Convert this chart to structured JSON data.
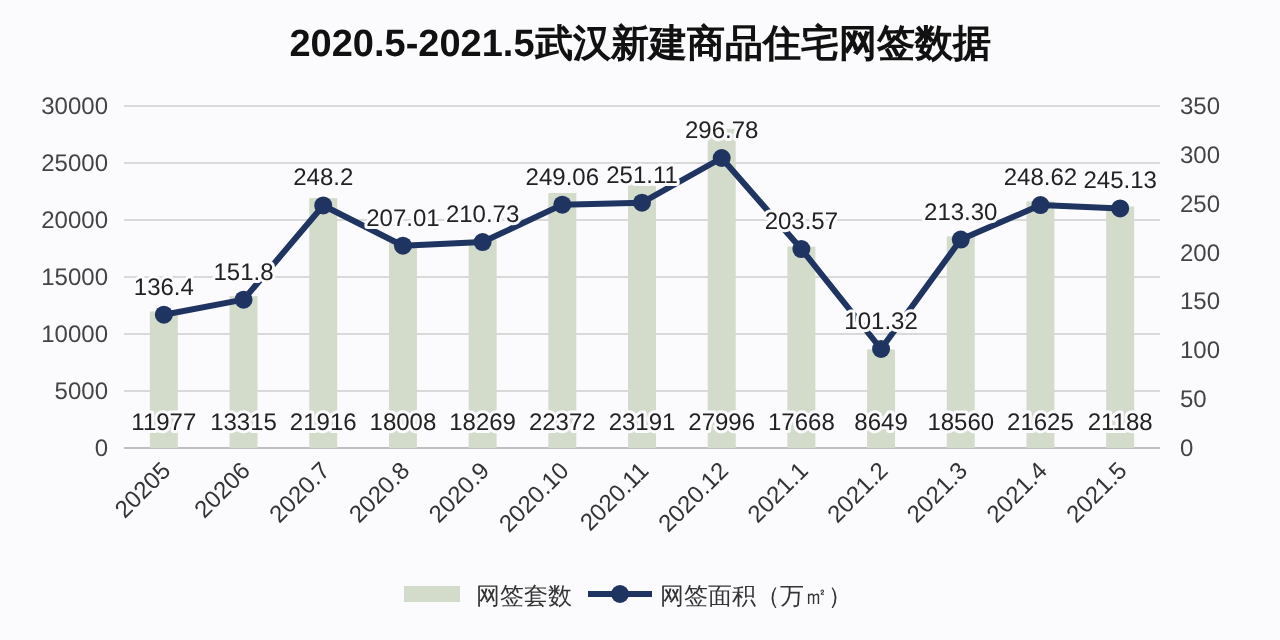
{
  "chart_data": {
    "type": "bar",
    "title": "2020.5-2021.5武汉新建商品住宅网签数据",
    "categories": [
      "20205",
      "20206",
      "2020.7",
      "2020.8",
      "2020.9",
      "2020.10",
      "2020.11",
      "2020.12",
      "2021.1",
      "2021.2",
      "2021.3",
      "2021.4",
      "2021.5"
    ],
    "series": [
      {
        "name": "网签套数",
        "color": "#d3dccb",
        "values": [
          11977,
          13315,
          21916,
          18008,
          18269,
          22372,
          23191,
          27996,
          17668,
          8649,
          18560,
          21625,
          21188
        ],
        "value_labels": [
          "11977",
          "13315",
          "21916",
          "18008",
          "18269",
          "22372",
          "23191",
          "27996",
          "17668",
          "8649",
          "18560",
          "21625",
          "21188"
        ]
      },
      {
        "name": "网签面积（万㎡）",
        "type": "line",
        "axis": "y2",
        "color": "#1f3461",
        "marker": "circle",
        "values": [
          136.4,
          151.8,
          248.2,
          207.01,
          210.73,
          249.06,
          251.11,
          296.78,
          203.57,
          101.32,
          213.3,
          248.62,
          245.13
        ],
        "value_labels": [
          "136.4",
          "151.8",
          "248.2",
          "207.01",
          "210.73",
          "249.06",
          "251.11",
          "296.78",
          "203.57",
          "101.32",
          "213.30",
          "248.62",
          "245.13"
        ]
      }
    ],
    "ylim": [
      0,
      30000
    ],
    "yticks": [
      0,
      5000,
      10000,
      15000,
      20000,
      25000,
      30000
    ],
    "y2lim": [
      0,
      350
    ],
    "y2ticks": [
      0,
      50,
      100,
      150,
      200,
      250,
      300,
      350
    ],
    "grid": "y",
    "legend": "bottom"
  }
}
